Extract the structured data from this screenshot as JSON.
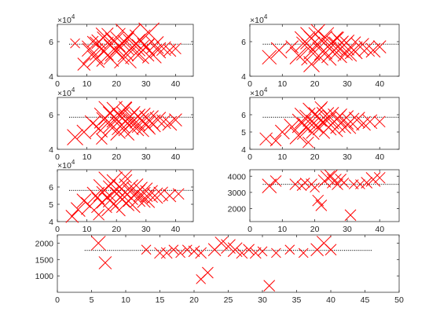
{
  "figure": {
    "background": "#ffffff"
  },
  "style": {
    "marker_color": "#ff0000",
    "reference_color": "#262626",
    "axis_color": "#262626"
  },
  "chart_data": [
    {
      "type": "scatter",
      "panel": "top-left",
      "xlim": [
        0,
        46
      ],
      "ylim": [
        40000,
        70000
      ],
      "xticks": [
        0,
        10,
        20,
        30,
        40
      ],
      "yticks": [
        40000,
        60000
      ],
      "ytick_labels": [
        "4",
        "6"
      ],
      "exponent_label": "×10",
      "exponent_power": "4",
      "reference_line": {
        "x": [
          4,
          46
        ],
        "y": 58500
      },
      "markers": [
        [
          11,
          56000,
          20
        ],
        [
          12,
          53000,
          26
        ],
        [
          13,
          50000,
          22
        ],
        [
          14,
          60000,
          18
        ],
        [
          15,
          56000,
          30
        ],
        [
          16,
          63000,
          22
        ],
        [
          17,
          52000,
          28
        ],
        [
          18,
          58000,
          34
        ],
        [
          19,
          61000,
          30
        ],
        [
          20,
          54000,
          32
        ],
        [
          21,
          57000,
          36
        ],
        [
          22,
          59000,
          30
        ],
        [
          23,
          51000,
          28
        ],
        [
          24,
          63000,
          32
        ],
        [
          25,
          56000,
          34
        ],
        [
          26,
          58000,
          28
        ],
        [
          27,
          54000,
          30
        ],
        [
          28,
          61000,
          26
        ],
        [
          29,
          55000,
          28
        ],
        [
          30,
          57000,
          22
        ],
        [
          31,
          65000,
          26
        ],
        [
          32,
          53000,
          24
        ],
        [
          33,
          58000,
          22
        ],
        [
          34,
          55000,
          20
        ],
        [
          36,
          56000,
          18
        ],
        [
          38,
          55000,
          16
        ],
        [
          40,
          56000,
          14
        ],
        [
          9,
          47000,
          16
        ],
        [
          12,
          60000,
          14
        ],
        [
          6,
          59000,
          12
        ]
      ]
    },
    {
      "type": "scatter",
      "panel": "top-right",
      "xlim": [
        0,
        46
      ],
      "ylim": [
        40000,
        70000
      ],
      "xticks": [
        0,
        10,
        20,
        30,
        40
      ],
      "yticks": [
        40000,
        60000
      ],
      "ytick_labels": [
        "4",
        "6"
      ],
      "exponent_label": "×10",
      "exponent_power": "4",
      "reference_line": {
        "x": [
          4,
          46
        ],
        "y": 58500
      },
      "markers": [
        [
          6,
          51000,
          18
        ],
        [
          9,
          55000,
          20
        ],
        [
          13,
          57000,
          16
        ],
        [
          15,
          52000,
          22
        ],
        [
          17,
          60000,
          26
        ],
        [
          18,
          56000,
          30
        ],
        [
          19,
          62000,
          28
        ],
        [
          20,
          54000,
          34
        ],
        [
          21,
          58000,
          36
        ],
        [
          22,
          61000,
          32
        ],
        [
          23,
          53000,
          30
        ],
        [
          24,
          57000,
          34
        ],
        [
          25,
          59000,
          30
        ],
        [
          26,
          55000,
          32
        ],
        [
          27,
          57000,
          28
        ],
        [
          28,
          56000,
          30
        ],
        [
          29,
          58000,
          26
        ],
        [
          30,
          54000,
          24
        ],
        [
          31,
          57000,
          26
        ],
        [
          32,
          55000,
          22
        ],
        [
          34,
          57000,
          22
        ],
        [
          36,
          56000,
          20
        ],
        [
          38,
          55000,
          18
        ],
        [
          40,
          57000,
          16
        ],
        [
          21,
          66000,
          18
        ],
        [
          19,
          47000,
          20
        ],
        [
          27,
          62000,
          16
        ]
      ]
    },
    {
      "type": "scatter",
      "panel": "middle-left",
      "xlim": [
        0,
        46
      ],
      "ylim": [
        40000,
        70000
      ],
      "xticks": [
        0,
        10,
        20,
        30,
        40
      ],
      "yticks": [
        40000,
        60000
      ],
      "ytick_labels": [
        "4",
        "6"
      ],
      "exponent_label": "×10",
      "exponent_power": "4",
      "reference_line": {
        "x": [
          4,
          46
        ],
        "y": 58500
      },
      "markers": [
        [
          6,
          47000,
          20
        ],
        [
          9,
          50000,
          18
        ],
        [
          12,
          55000,
          20
        ],
        [
          14,
          52000,
          22
        ],
        [
          16,
          58000,
          26
        ],
        [
          17,
          55000,
          28
        ],
        [
          18,
          61000,
          30
        ],
        [
          19,
          53000,
          30
        ],
        [
          20,
          57000,
          34
        ],
        [
          21,
          60000,
          32
        ],
        [
          22,
          52000,
          30
        ],
        [
          23,
          56000,
          34
        ],
        [
          24,
          58000,
          30
        ],
        [
          25,
          55000,
          32
        ],
        [
          26,
          57000,
          28
        ],
        [
          27,
          54000,
          30
        ],
        [
          28,
          58000,
          26
        ],
        [
          29,
          56000,
          28
        ],
        [
          30,
          54000,
          24
        ],
        [
          31,
          57000,
          24
        ],
        [
          32,
          55000,
          22
        ],
        [
          34,
          57000,
          20
        ],
        [
          36,
          56000,
          18
        ],
        [
          38,
          55000,
          18
        ],
        [
          40,
          57000,
          16
        ],
        [
          23,
          64000,
          16
        ],
        [
          15,
          46000,
          14
        ]
      ]
    },
    {
      "type": "scatter",
      "panel": "middle-right",
      "xlim": [
        0,
        46
      ],
      "ylim": [
        40000,
        70000
      ],
      "xticks": [
        0,
        10,
        20,
        30,
        40
      ],
      "yticks": [
        40000,
        50000,
        60000
      ],
      "ytick_labels": [
        "4",
        "5",
        "6"
      ],
      "exponent_label": "×10",
      "exponent_power": "4",
      "reference_line": {
        "x": [
          4,
          46
        ],
        "y": 58500
      },
      "markers": [
        [
          5,
          46000,
          16
        ],
        [
          8,
          45000,
          14
        ],
        [
          10,
          50000,
          18
        ],
        [
          13,
          53000,
          20
        ],
        [
          15,
          48000,
          22
        ],
        [
          16,
          55000,
          24
        ],
        [
          17,
          58000,
          26
        ],
        [
          18,
          52000,
          28
        ],
        [
          19,
          56000,
          30
        ],
        [
          20,
          60000,
          30
        ],
        [
          21,
          53000,
          30
        ],
        [
          22,
          57000,
          32
        ],
        [
          23,
          55000,
          30
        ],
        [
          24,
          58000,
          28
        ],
        [
          25,
          54000,
          30
        ],
        [
          26,
          56000,
          28
        ],
        [
          27,
          58000,
          24
        ],
        [
          28,
          55000,
          26
        ],
        [
          29,
          57000,
          24
        ],
        [
          30,
          54000,
          22
        ],
        [
          31,
          56000,
          22
        ],
        [
          33,
          57000,
          20
        ],
        [
          35,
          55000,
          18
        ],
        [
          37,
          56000,
          18
        ],
        [
          40,
          56000,
          14
        ],
        [
          22,
          64000,
          16
        ],
        [
          18,
          44000,
          14
        ]
      ]
    },
    {
      "type": "scatter",
      "panel": "lower-left",
      "xlim": [
        0,
        46
      ],
      "ylim": [
        40000,
        70000
      ],
      "xticks": [
        0,
        10,
        20,
        30,
        40
      ],
      "yticks": [
        40000,
        50000,
        60000
      ],
      "ytick_labels": [
        "4",
        "5",
        "6"
      ],
      "exponent_label": "×10",
      "exponent_power": "4",
      "reference_line": {
        "x": [
          4,
          46
        ],
        "y": 58000
      },
      "markers": [
        [
          5,
          43000,
          16
        ],
        [
          7,
          47000,
          18
        ],
        [
          9,
          52000,
          18
        ],
        [
          11,
          49000,
          22
        ],
        [
          13,
          55000,
          22
        ],
        [
          15,
          51000,
          26
        ],
        [
          16,
          58000,
          28
        ],
        [
          17,
          54000,
          28
        ],
        [
          18,
          62000,
          30
        ],
        [
          19,
          50000,
          30
        ],
        [
          20,
          56000,
          34
        ],
        [
          21,
          60000,
          32
        ],
        [
          22,
          53000,
          30
        ],
        [
          23,
          57000,
          32
        ],
        [
          24,
          52000,
          30
        ],
        [
          25,
          58000,
          30
        ],
        [
          26,
          55000,
          28
        ],
        [
          27,
          57000,
          26
        ],
        [
          28,
          54000,
          26
        ],
        [
          29,
          57000,
          24
        ],
        [
          30,
          53000,
          22
        ],
        [
          31,
          56000,
          22
        ],
        [
          33,
          55000,
          20
        ],
        [
          35,
          56000,
          18
        ],
        [
          38,
          55000,
          16
        ],
        [
          41,
          56000,
          14
        ],
        [
          23,
          66000,
          16
        ],
        [
          14,
          44000,
          14
        ]
      ]
    },
    {
      "type": "scatter",
      "panel": "lower-right",
      "xlim": [
        0,
        46
      ],
      "ylim": [
        1200,
        4400
      ],
      "xticks": [
        0,
        10,
        20,
        30,
        40
      ],
      "yticks": [
        2000,
        3000,
        4000
      ],
      "ytick_labels": [
        "2000",
        "3000",
        "4000"
      ],
      "reference_line": {
        "x": [
          4,
          46
        ],
        "y": 3500
      },
      "markers": [
        [
          6,
          3400,
          18
        ],
        [
          8,
          3700,
          14
        ],
        [
          14,
          3500,
          14
        ],
        [
          16,
          3400,
          12
        ],
        [
          17,
          3600,
          12
        ],
        [
          19,
          3500,
          14
        ],
        [
          20,
          3300,
          12
        ],
        [
          21,
          2500,
          14
        ],
        [
          22,
          2200,
          14
        ],
        [
          23,
          3700,
          16
        ],
        [
          24,
          3900,
          18
        ],
        [
          25,
          4000,
          16
        ],
        [
          26,
          3700,
          18
        ],
        [
          27,
          3500,
          14
        ],
        [
          28,
          3800,
          14
        ],
        [
          29,
          3600,
          12
        ],
        [
          31,
          1600,
          14
        ],
        [
          32,
          3500,
          12
        ],
        [
          34,
          3500,
          12
        ],
        [
          36,
          3600,
          14
        ],
        [
          38,
          3800,
          18
        ],
        [
          40,
          3900,
          14
        ]
      ]
    },
    {
      "type": "scatter",
      "panel": "bottom-wide",
      "xlim": [
        0,
        50
      ],
      "ylim": [
        500,
        2250
      ],
      "xticks": [
        0,
        5,
        10,
        15,
        20,
        25,
        30,
        35,
        40,
        45,
        50
      ],
      "xtick_labels": [
        "0",
        "5",
        "10",
        "15",
        "20",
        "25",
        "30",
        "35",
        "40",
        "45",
        "50"
      ],
      "yticks": [
        1000,
        1500,
        2000
      ],
      "ytick_labels": [
        "1000",
        "1500",
        "2000"
      ],
      "reference_line": {
        "x": [
          4,
          46
        ],
        "y": 1780
      },
      "markers": [
        [
          6,
          2000,
          18
        ],
        [
          7,
          1400,
          16
        ],
        [
          13,
          1800,
          12
        ],
        [
          15,
          1700,
          14
        ],
        [
          16,
          1700,
          14
        ],
        [
          17,
          1800,
          12
        ],
        [
          18,
          1700,
          12
        ],
        [
          19,
          1800,
          12
        ],
        [
          20,
          1750,
          14
        ],
        [
          21,
          1700,
          14
        ],
        [
          22,
          1100,
          14
        ],
        [
          23,
          1800,
          16
        ],
        [
          24,
          2000,
          16
        ],
        [
          25,
          1900,
          18
        ],
        [
          26,
          1800,
          18
        ],
        [
          27,
          1700,
          14
        ],
        [
          28,
          1800,
          14
        ],
        [
          29,
          1700,
          14
        ],
        [
          30,
          1750,
          12
        ],
        [
          31,
          700,
          14
        ],
        [
          32,
          1700,
          12
        ],
        [
          34,
          1800,
          12
        ],
        [
          36,
          1700,
          12
        ],
        [
          38,
          1800,
          16
        ],
        [
          39,
          2000,
          18
        ],
        [
          40,
          1800,
          14
        ],
        [
          21,
          900,
          12
        ]
      ]
    }
  ]
}
